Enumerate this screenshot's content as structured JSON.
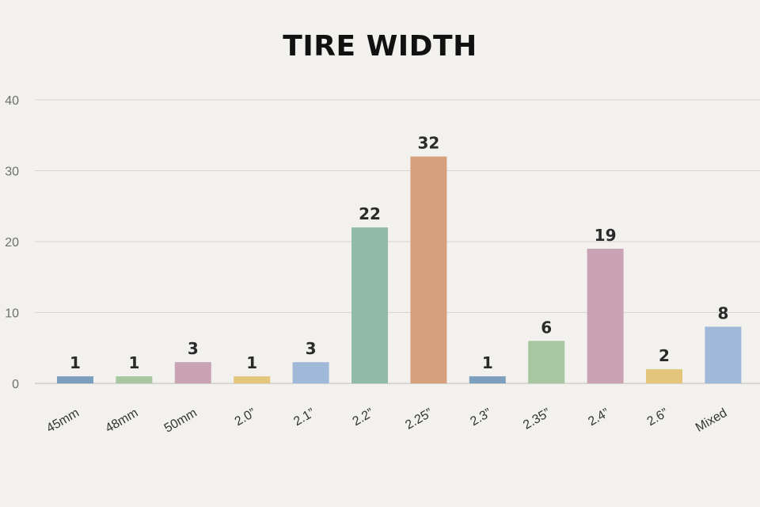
{
  "chart_data": {
    "type": "bar",
    "title": "TIRE WIDTH",
    "xlabel": "",
    "ylabel": "",
    "categories": [
      "45mm",
      "48mm",
      "50mm",
      "2.0”",
      "2.1”",
      "2.2”",
      "2.25”",
      "2.3”",
      "2.35”",
      "2.4”",
      "2.6”",
      "Mixed"
    ],
    "values": [
      1,
      1,
      3,
      1,
      3,
      22,
      32,
      1,
      6,
      19,
      2,
      8
    ],
    "data_labels": [
      "1",
      "1",
      "3",
      "1",
      "3",
      "22",
      "32",
      "1",
      "6",
      "19",
      "2",
      "8"
    ],
    "bar_colors": [
      "#7d9fbe",
      "#a6c79f",
      "#c9a2b4",
      "#e3c57c",
      "#a0b9d9",
      "#93b9a8",
      "#d7a07c",
      "#7d9fbe",
      "#a6c79f",
      "#c9a2b4",
      "#e3c57c",
      "#a0b9d9"
    ],
    "ylim": [
      0,
      40
    ],
    "yticks": [
      0,
      10,
      20,
      30,
      40
    ],
    "grid": true,
    "legend": "none"
  }
}
